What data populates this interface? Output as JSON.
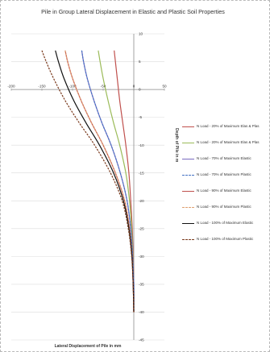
{
  "chart_data": {
    "type": "line",
    "title": "Pile in Group Lateral Displacement in Elastic and Plastic Soil Properties",
    "xlabel": "Lateral Displacement of Pile in mm",
    "ylabel": "Depth of Pile in m",
    "xlim": [
      -200,
      50
    ],
    "ylim": [
      -45,
      10
    ],
    "x_ticks": [
      "-200",
      "-150",
      "-100",
      "-50",
      "0",
      "50"
    ],
    "y_ticks": [
      "10",
      "5",
      "0",
      "-5",
      "-10",
      "-15",
      "-20",
      "-25",
      "-30",
      "-35",
      "-40",
      "-45"
    ],
    "grid": "horizontal",
    "legend_position": "right",
    "series": [
      {
        "name": "N Load - 20% of Maximum Elas & Plas",
        "color": "#c0504d",
        "dash": "solid",
        "points": [
          [
            -32,
            7
          ],
          [
            -30,
            5
          ],
          [
            -27,
            2
          ],
          [
            -23,
            -2
          ],
          [
            -18,
            -6
          ],
          [
            -13,
            -10
          ],
          [
            -8,
            -15
          ],
          [
            -5,
            -20
          ],
          [
            -2.5,
            -25
          ],
          [
            -1,
            -30
          ],
          [
            0,
            -35
          ],
          [
            0,
            -40
          ]
        ]
      },
      {
        "name": "N Load - 20% of Maximum Elas & Plas",
        "color": "#9bbb59",
        "dash": "solid",
        "points": [
          [
            -58,
            7
          ],
          [
            -55,
            5
          ],
          [
            -50,
            2
          ],
          [
            -42,
            -2
          ],
          [
            -33,
            -6
          ],
          [
            -23,
            -10
          ],
          [
            -13,
            -15
          ],
          [
            -7,
            -20
          ],
          [
            -3.5,
            -25
          ],
          [
            -1.5,
            -30
          ],
          [
            0,
            -35
          ],
          [
            0,
            -40
          ]
        ]
      },
      {
        "name": "N Load - 70% of Maximum Elastic",
        "color": "#7a6bbf",
        "dash": "solid",
        "points": [
          [
            -85,
            7
          ],
          [
            -82,
            5
          ],
          [
            -76,
            2
          ],
          [
            -65,
            -2
          ],
          [
            -52,
            -6
          ],
          [
            -37,
            -10
          ],
          [
            -22,
            -15
          ],
          [
            -11,
            -20
          ],
          [
            -5,
            -25
          ],
          [
            -2,
            -30
          ],
          [
            0,
            -35
          ],
          [
            0,
            -40
          ]
        ]
      },
      {
        "name": "N Load - 70% of Maximum Plastic",
        "color": "#4472c4",
        "dash": "dash",
        "points": [
          [
            -85,
            7
          ],
          [
            -82,
            5
          ],
          [
            -76,
            2
          ],
          [
            -65,
            -2
          ],
          [
            -52,
            -6
          ],
          [
            -37,
            -10
          ],
          [
            -22,
            -15
          ],
          [
            -11,
            -20
          ],
          [
            -5,
            -25
          ],
          [
            -2,
            -30
          ],
          [
            0,
            -35
          ],
          [
            0,
            -40
          ]
        ]
      },
      {
        "name": "N Load - 90% of Maximum Elastic",
        "color": "#c0504d",
        "dash": "solid",
        "points": [
          [
            -112,
            7
          ],
          [
            -108,
            5
          ],
          [
            -100,
            2
          ],
          [
            -86,
            -2
          ],
          [
            -69,
            -6
          ],
          [
            -50,
            -10
          ],
          [
            -30,
            -15
          ],
          [
            -15,
            -20
          ],
          [
            -7,
            -25
          ],
          [
            -3,
            -30
          ],
          [
            -1,
            -35
          ],
          [
            0,
            -40
          ]
        ]
      },
      {
        "name": "N Load - 90% of Maximum Plastic",
        "color": "#e0a070",
        "dash": "dash",
        "points": [
          [
            -112,
            7
          ],
          [
            -108,
            5
          ],
          [
            -100,
            2
          ],
          [
            -86,
            -2
          ],
          [
            -69,
            -6
          ],
          [
            -50,
            -10
          ],
          [
            -30,
            -15
          ],
          [
            -15,
            -20
          ],
          [
            -7,
            -25
          ],
          [
            -3,
            -30
          ],
          [
            -1,
            -35
          ],
          [
            0,
            -40
          ]
        ]
      },
      {
        "name": "N Load - 100% of Maximum Elastic",
        "color": "#111111",
        "dash": "solid",
        "points": [
          [
            -128,
            7
          ],
          [
            -123,
            5
          ],
          [
            -114,
            2
          ],
          [
            -98,
            -2
          ],
          [
            -78,
            -6
          ],
          [
            -56,
            -10
          ],
          [
            -33,
            -15
          ],
          [
            -17,
            -20
          ],
          [
            -8,
            -25
          ],
          [
            -3,
            -30
          ],
          [
            -1,
            -35
          ],
          [
            0,
            -40
          ]
        ]
      },
      {
        "name": "N Load - 100% of Maximum Plastic",
        "color": "#7b3b1e",
        "dash": "dash",
        "points": [
          [
            -150,
            7
          ],
          [
            -143,
            5
          ],
          [
            -131,
            2
          ],
          [
            -112,
            -2
          ],
          [
            -89,
            -6
          ],
          [
            -64,
            -10
          ],
          [
            -38,
            -15
          ],
          [
            -19,
            -20
          ],
          [
            -9,
            -25
          ],
          [
            -3.5,
            -30
          ],
          [
            -1,
            -35
          ],
          [
            0,
            -40
          ]
        ]
      }
    ]
  }
}
